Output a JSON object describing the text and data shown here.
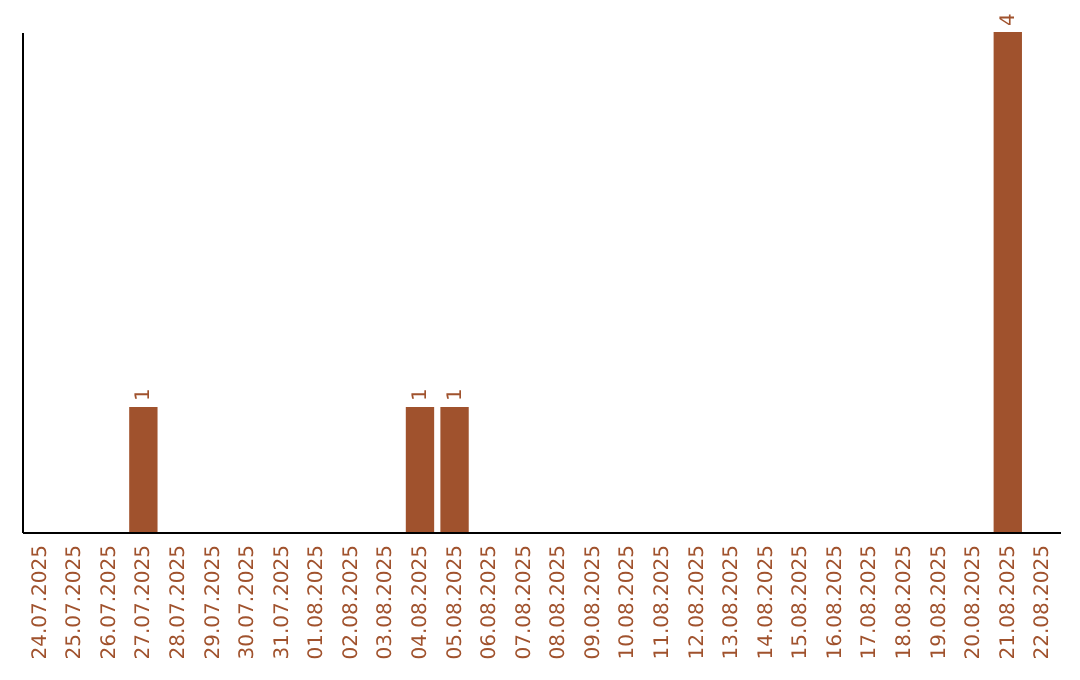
{
  "chart_data": {
    "type": "bar",
    "categories": [
      "24.07.2025",
      "25.07.2025",
      "26.07.2025",
      "27.07.2025",
      "28.07.2025",
      "29.07.2025",
      "30.07.2025",
      "31.07.2025",
      "01.08.2025",
      "02.08.2025",
      "03.08.2025",
      "04.08.2025",
      "05.08.2025",
      "06.08.2025",
      "07.08.2025",
      "08.08.2025",
      "09.08.2025",
      "10.08.2025",
      "11.08.2025",
      "12.08.2025",
      "13.08.2025",
      "14.08.2025",
      "15.08.2025",
      "16.08.2025",
      "17.08.2025",
      "18.08.2025",
      "19.08.2025",
      "20.08.2025",
      "21.08.2025",
      "22.08.2025"
    ],
    "values": [
      0,
      0,
      0,
      1,
      0,
      0,
      0,
      0,
      0,
      0,
      0,
      1,
      1,
      0,
      0,
      0,
      0,
      0,
      0,
      0,
      0,
      0,
      0,
      0,
      0,
      0,
      0,
      0,
      4,
      0
    ],
    "value_labels": [
      null,
      null,
      null,
      "1",
      null,
      null,
      null,
      null,
      null,
      null,
      null,
      "1",
      "1",
      null,
      null,
      null,
      null,
      null,
      null,
      null,
      null,
      null,
      null,
      null,
      null,
      null,
      null,
      null,
      "4",
      null
    ],
    "color": "#a0522d",
    "tick_labels": "x",
    "grid": false
  }
}
